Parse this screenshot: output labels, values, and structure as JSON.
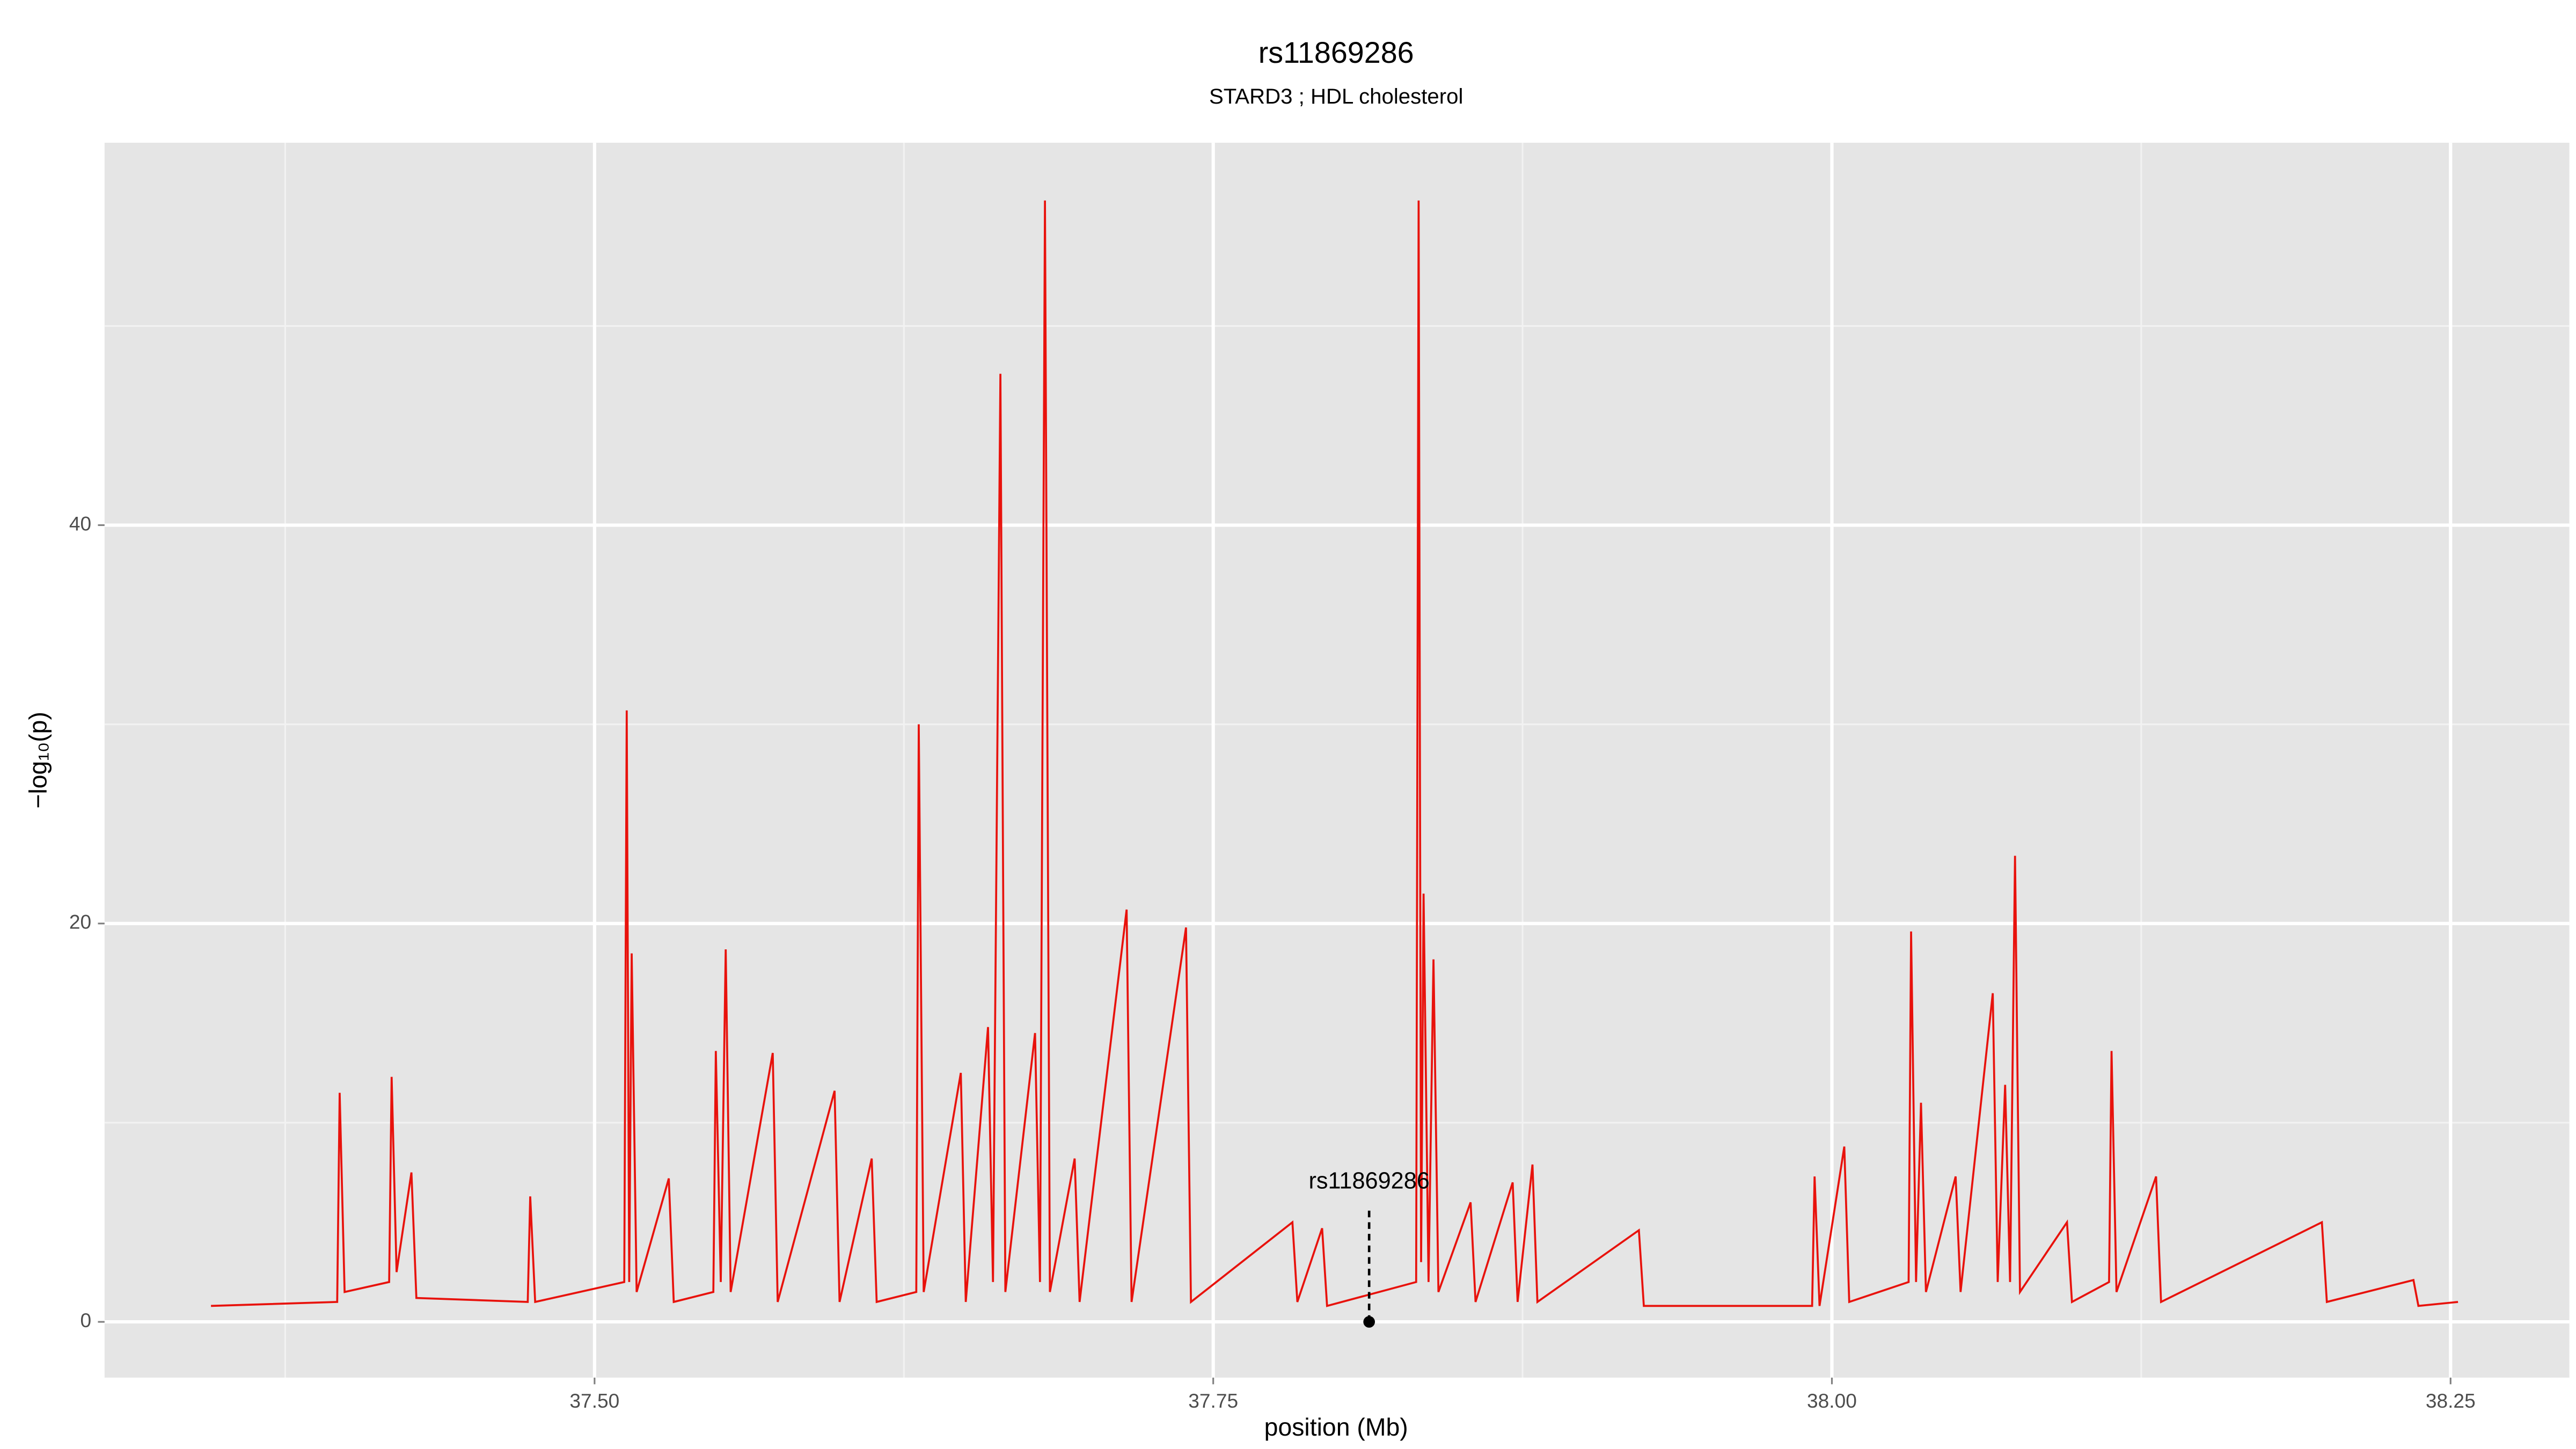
{
  "chart_data": {
    "type": "line",
    "title": "rs11869286",
    "subtitle": "STARD3 ; HDL cholesterol",
    "xlabel": "position (Mb)",
    "ylabel": "−log₁₀(p)",
    "color": "#e8120c",
    "background": "#e5e5e5",
    "grid": true,
    "xlim": [
      37.302,
      38.298
    ],
    "ylim": [
      -2.8,
      59.2
    ],
    "xticks": [
      {
        "value": 37.5,
        "label": "37.50"
      },
      37.75,
      {
        "value": 38,
        "label": "38.00"
      },
      38.25
    ],
    "yticks": [
      0,
      20,
      40
    ],
    "x_minor_grid": [
      37.375,
      37.625,
      37.875,
      38.125
    ],
    "y_minor_grid": [
      10,
      30,
      50
    ],
    "x": [
      37.345,
      37.396,
      37.397,
      37.399,
      37.417,
      37.418,
      37.42,
      37.426,
      37.428,
      37.473,
      37.474,
      37.476,
      37.512,
      37.513,
      37.514,
      37.515,
      37.517,
      37.53,
      37.532,
      37.548,
      37.549,
      37.551,
      37.553,
      37.555,
      37.572,
      37.574,
      37.597,
      37.599,
      37.612,
      37.614,
      37.63,
      37.631,
      37.633,
      37.648,
      37.65,
      37.659,
      37.661,
      37.664,
      37.666,
      37.678,
      37.68,
      37.682,
      37.684,
      37.694,
      37.696,
      37.715,
      37.717,
      37.739,
      37.741,
      37.782,
      37.784,
      37.794,
      37.796,
      37.832,
      37.833,
      37.834,
      37.835,
      37.837,
      37.839,
      37.841,
      37.854,
      37.856,
      37.871,
      37.873,
      37.879,
      37.881,
      37.922,
      37.924,
      37.992,
      37.993,
      37.995,
      38.005,
      38.007,
      38.031,
      38.032,
      38.034,
      38.036,
      38.038,
      38.05,
      38.052,
      38.065,
      38.067,
      38.07,
      38.072,
      38.074,
      38.076,
      38.095,
      38.097,
      38.112,
      38.113,
      38.115,
      38.131,
      38.133,
      38.198,
      38.2,
      38.235,
      38.237,
      38.253
    ],
    "values": [
      0.8,
      1.0,
      11.5,
      1.5,
      2.0,
      12.3,
      2.5,
      7.5,
      1.2,
      1.0,
      6.3,
      1.0,
      2.0,
      30.7,
      2.0,
      18.5,
      1.5,
      7.2,
      1.0,
      1.5,
      13.6,
      2.0,
      18.7,
      1.5,
      13.5,
      1.0,
      11.6,
      1.0,
      8.2,
      1.0,
      1.5,
      30.0,
      1.5,
      12.5,
      1.0,
      14.8,
      2.0,
      47.6,
      1.5,
      14.5,
      2.0,
      56.3,
      1.5,
      8.2,
      1.0,
      20.7,
      1.0,
      19.8,
      1.0,
      5.0,
      1.0,
      4.7,
      0.8,
      2.0,
      56.3,
      3.0,
      21.5,
      2.0,
      18.2,
      1.5,
      6.0,
      1.0,
      7.0,
      1.0,
      7.9,
      1.0,
      4.6,
      0.8,
      0.8,
      7.3,
      0.8,
      8.8,
      1.0,
      2.0,
      19.6,
      2.0,
      11.0,
      1.5,
      7.3,
      1.5,
      16.5,
      2.0,
      11.9,
      2.0,
      23.4,
      1.5,
      5.0,
      1.0,
      2.0,
      13.6,
      1.5,
      7.3,
      1.0,
      5.0,
      1.0,
      2.1,
      0.8,
      1.0
    ],
    "annotation": {
      "text": "rs11869286",
      "x": 37.813,
      "y": 0
    }
  }
}
